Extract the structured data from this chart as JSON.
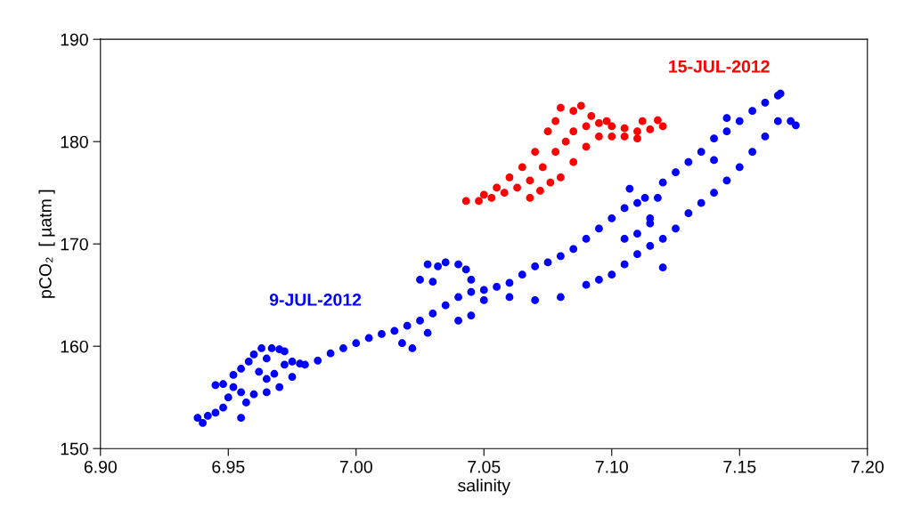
{
  "chart_data": {
    "type": "scatter",
    "xlabel": "salinity",
    "ylabel": "pCO₂  [ µatm ]",
    "xlim": [
      6.9,
      7.2
    ],
    "ylim": [
      150,
      190
    ],
    "xticks": [
      {
        "value": 6.9,
        "label": "6.90"
      },
      {
        "value": 6.95,
        "label": "6.95"
      },
      {
        "value": 7.0,
        "label": "7.00"
      },
      {
        "value": 7.05,
        "label": "7.05"
      },
      {
        "value": 7.1,
        "label": "7.10"
      },
      {
        "value": 7.15,
        "label": "7.15"
      },
      {
        "value": 7.2,
        "label": "7.20"
      }
    ],
    "yticks": [
      150,
      160,
      170,
      180,
      190
    ],
    "grid": false,
    "legend": false,
    "marker": "circle",
    "series": [
      {
        "name": "9-JUL-2012",
        "color": "#0000ff",
        "x": [
          6.938,
          6.94,
          6.942,
          6.945,
          6.948,
          6.95,
          6.952,
          6.955,
          6.957,
          6.955,
          6.945,
          6.948,
          6.952,
          6.955,
          6.958,
          6.96,
          6.963,
          6.967,
          6.97,
          6.972,
          6.965,
          6.962,
          6.965,
          6.968,
          6.972,
          6.975,
          6.96,
          6.965,
          6.97,
          6.975,
          6.978,
          6.98,
          6.985,
          6.99,
          6.995,
          7.0,
          7.005,
          7.01,
          7.015,
          7.02,
          7.025,
          7.03,
          7.035,
          7.04,
          7.045,
          7.05,
          7.055,
          7.06,
          7.065,
          7.07,
          7.075,
          7.08,
          7.085,
          7.09,
          7.095,
          7.1,
          7.105,
          7.11,
          7.113,
          7.018,
          7.022,
          7.028,
          7.025,
          7.028,
          7.032,
          7.035,
          7.04,
          7.043,
          7.045,
          7.03,
          7.04,
          7.045,
          7.05,
          7.06,
          7.07,
          7.08,
          7.09,
          7.095,
          7.1,
          7.105,
          7.11,
          7.115,
          7.12,
          7.125,
          7.13,
          7.135,
          7.14,
          7.145,
          7.15,
          7.155,
          7.16,
          7.165,
          7.17,
          7.172,
          7.115,
          7.118,
          7.12,
          7.125,
          7.13,
          7.135,
          7.14,
          7.145,
          7.15,
          7.155,
          7.16,
          7.165,
          7.166,
          7.12,
          7.107,
          7.145,
          7.14,
          7.105,
          7.11,
          7.115
        ],
        "values": [
          153,
          152.5,
          153.2,
          153.5,
          154,
          155,
          156,
          155.5,
          154.5,
          153,
          156.2,
          156.3,
          157.2,
          157.8,
          158.5,
          159.2,
          159.8,
          159.8,
          159.7,
          159.5,
          158.8,
          157.5,
          156.8,
          157.3,
          158.2,
          158.5,
          155.3,
          155.5,
          156,
          157,
          158.3,
          158.2,
          158.6,
          159.3,
          159.8,
          160.3,
          160.8,
          161.2,
          161.5,
          162,
          162.5,
          163.2,
          164,
          164.8,
          165.3,
          165.5,
          165.8,
          166.2,
          167,
          167.8,
          168.2,
          168.8,
          169.5,
          170.5,
          171.5,
          172.5,
          173.5,
          174,
          174.5,
          160.3,
          159.8,
          161.3,
          166.5,
          168,
          167.8,
          168.2,
          168,
          167.5,
          166.5,
          166.3,
          162.5,
          163,
          164.5,
          164.8,
          164.5,
          164.8,
          166,
          166.5,
          167,
          168,
          169,
          169.8,
          170.5,
          171.5,
          173,
          174,
          175,
          176.2,
          177.5,
          179,
          180.5,
          182,
          182,
          181.6,
          172.5,
          174.5,
          176,
          177,
          178,
          179,
          180.3,
          181,
          182,
          183,
          183.8,
          184.5,
          184.7,
          167.7,
          175.4,
          182.3,
          178.2,
          170.5,
          171,
          172
        ]
      },
      {
        "name": "15-JUL-2012",
        "color": "#ff0000",
        "x": [
          7.043,
          7.048,
          7.053,
          7.058,
          7.063,
          7.068,
          7.073,
          7.078,
          7.082,
          7.085,
          7.09,
          7.095,
          7.1,
          7.105,
          7.11,
          7.115,
          7.12,
          7.112,
          7.118,
          7.105,
          7.098,
          7.092,
          7.088,
          7.085,
          7.08,
          7.078,
          7.075,
          7.07,
          7.065,
          7.06,
          7.055,
          7.05,
          7.068,
          7.072,
          7.08,
          7.085,
          7.09,
          7.095,
          7.1,
          7.11,
          7.076
        ],
        "values": [
          174.2,
          174.2,
          174.5,
          175,
          175.5,
          176.2,
          177.5,
          179,
          180,
          181,
          181.5,
          181.8,
          181.5,
          181.3,
          181,
          181.2,
          181.5,
          182,
          182.1,
          180.5,
          182,
          182.5,
          183.5,
          183,
          183.3,
          182,
          181,
          179,
          177.5,
          176.5,
          175.5,
          174.8,
          174.5,
          175.2,
          176.5,
          178,
          179.5,
          180.5,
          180.5,
          180.3,
          176
        ]
      }
    ]
  }
}
